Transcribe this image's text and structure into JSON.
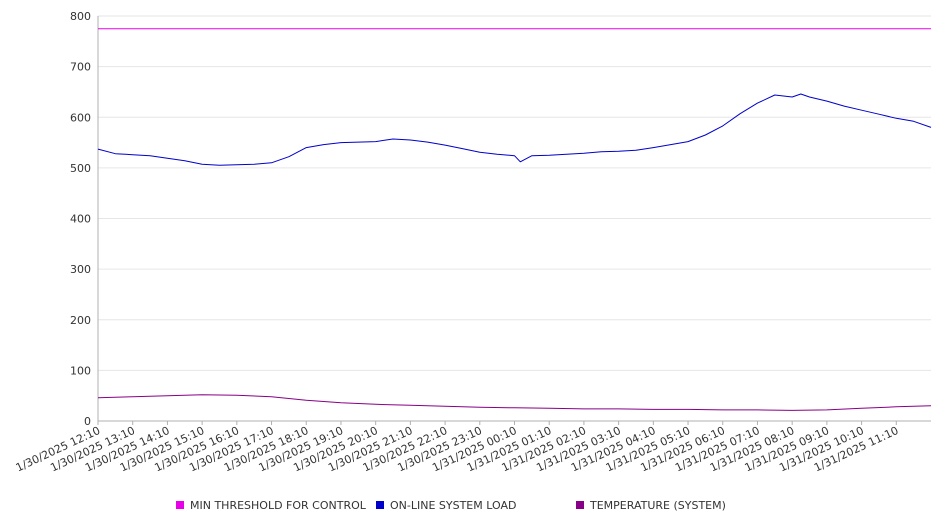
{
  "chart_data": {
    "type": "line",
    "ylim": [
      0,
      800
    ],
    "yticks": [
      0,
      100,
      200,
      300,
      400,
      500,
      600,
      700,
      800
    ],
    "grid": true,
    "legend_placement": "bottom-center",
    "x_tick_labels": [
      "1/30/2025 12:10",
      "1/30/2025 13:10",
      "1/30/2025 14:10",
      "1/30/2025 15:10",
      "1/30/2025 16:10",
      "1/30/2025 17:10",
      "1/30/2025 18:10",
      "1/30/2025 19:10",
      "1/30/2025 20:10",
      "1/30/2025 21:10",
      "1/30/2025 22:10",
      "1/30/2025 23:10",
      "1/31/2025 00:10",
      "1/31/2025 01:10",
      "1/31/2025 02:10",
      "1/31/2025 03:10",
      "1/31/2025 04:10",
      "1/31/2025 05:10",
      "1/31/2025 06:10",
      "1/31/2025 07:10",
      "1/31/2025 08:10",
      "1/31/2025 09:10",
      "1/31/2025 10:10",
      "1/31/2025 11:10"
    ],
    "x_range": [
      "1/30/2025 12:10",
      "1/31/2025 12:10"
    ],
    "series": [
      {
        "name": "MIN THRESHOLD FOR CONTROL",
        "color": "#e800e8",
        "points": [
          [
            "1/30/2025 12:10",
            775
          ],
          [
            "1/31/2025 12:10",
            775
          ]
        ]
      },
      {
        "name": "ON-LINE SYSTEM LOAD",
        "color": "#0000cc",
        "points": [
          [
            "1/30/2025 12:10",
            537
          ],
          [
            "1/30/2025 12:40",
            528
          ],
          [
            "1/30/2025 13:10",
            526
          ],
          [
            "1/30/2025 13:40",
            524
          ],
          [
            "1/30/2025 14:10",
            519
          ],
          [
            "1/30/2025 14:40",
            514
          ],
          [
            "1/30/2025 15:10",
            507
          ],
          [
            "1/30/2025 15:40",
            505
          ],
          [
            "1/30/2025 16:10",
            506
          ],
          [
            "1/30/2025 16:40",
            507
          ],
          [
            "1/30/2025 17:10",
            510
          ],
          [
            "1/30/2025 17:40",
            522
          ],
          [
            "1/30/2025 18:10",
            540
          ],
          [
            "1/30/2025 18:40",
            546
          ],
          [
            "1/30/2025 19:10",
            550
          ],
          [
            "1/30/2025 19:40",
            551
          ],
          [
            "1/30/2025 20:10",
            552
          ],
          [
            "1/30/2025 20:40",
            557
          ],
          [
            "1/30/2025 21:10",
            555
          ],
          [
            "1/30/2025 21:40",
            551
          ],
          [
            "1/30/2025 22:10",
            545
          ],
          [
            "1/30/2025 22:40",
            538
          ],
          [
            "1/30/2025 23:10",
            531
          ],
          [
            "1/30/2025 23:40",
            527
          ],
          [
            "1/31/2025 00:10",
            524
          ],
          [
            "1/31/2025 00:20",
            512
          ],
          [
            "1/31/2025 00:40",
            524
          ],
          [
            "1/31/2025 01:10",
            525
          ],
          [
            "1/31/2025 01:40",
            527
          ],
          [
            "1/31/2025 02:10",
            529
          ],
          [
            "1/31/2025 02:40",
            532
          ],
          [
            "1/31/2025 03:10",
            533
          ],
          [
            "1/31/2025 03:40",
            535
          ],
          [
            "1/31/2025 04:10",
            540
          ],
          [
            "1/31/2025 04:40",
            546
          ],
          [
            "1/31/2025 05:10",
            552
          ],
          [
            "1/31/2025 05:40",
            565
          ],
          [
            "1/31/2025 06:10",
            583
          ],
          [
            "1/31/2025 06:40",
            607
          ],
          [
            "1/31/2025 07:10",
            628
          ],
          [
            "1/31/2025 07:40",
            644
          ],
          [
            "1/31/2025 08:10",
            640
          ],
          [
            "1/31/2025 08:25",
            646
          ],
          [
            "1/31/2025 08:40",
            640
          ],
          [
            "1/31/2025 09:10",
            632
          ],
          [
            "1/31/2025 09:40",
            622
          ],
          [
            "1/31/2025 10:10",
            614
          ],
          [
            "1/31/2025 10:40",
            606
          ],
          [
            "1/31/2025 11:10",
            598
          ],
          [
            "1/31/2025 11:40",
            592
          ],
          [
            "1/31/2025 12:10",
            580
          ]
        ]
      },
      {
        "name": "TEMPERATURE (SYSTEM)",
        "color": "#880088",
        "points": [
          [
            "1/30/2025 12:10",
            46
          ],
          [
            "1/30/2025 13:10",
            48
          ],
          [
            "1/30/2025 14:10",
            50
          ],
          [
            "1/30/2025 15:10",
            52
          ],
          [
            "1/30/2025 16:10",
            51
          ],
          [
            "1/30/2025 17:10",
            48
          ],
          [
            "1/30/2025 18:10",
            41
          ],
          [
            "1/30/2025 19:10",
            36
          ],
          [
            "1/30/2025 20:10",
            33
          ],
          [
            "1/30/2025 21:10",
            31
          ],
          [
            "1/30/2025 22:10",
            29
          ],
          [
            "1/30/2025 23:10",
            27
          ],
          [
            "1/31/2025 00:10",
            26
          ],
          [
            "1/31/2025 01:10",
            25
          ],
          [
            "1/31/2025 02:10",
            24
          ],
          [
            "1/31/2025 03:10",
            24
          ],
          [
            "1/31/2025 04:10",
            23
          ],
          [
            "1/31/2025 05:10",
            23
          ],
          [
            "1/31/2025 06:10",
            22
          ],
          [
            "1/31/2025 07:10",
            22
          ],
          [
            "1/31/2025 08:10",
            21
          ],
          [
            "1/31/2025 09:10",
            22
          ],
          [
            "1/31/2025 10:10",
            25
          ],
          [
            "1/31/2025 11:10",
            28
          ],
          [
            "1/31/2025 12:10",
            30
          ]
        ]
      }
    ]
  }
}
